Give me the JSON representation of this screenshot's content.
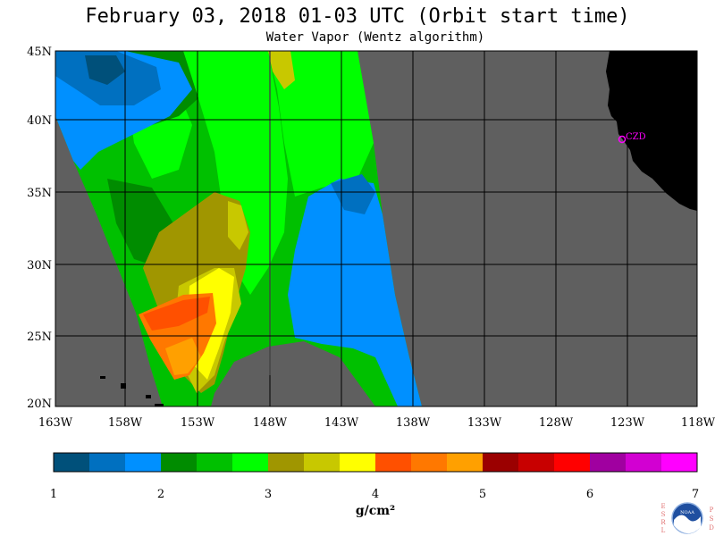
{
  "title": "February 03, 2018  01-03 UTC  (Orbit start time)",
  "subtitle": "Water Vapor (Wentz algorithm)",
  "map": {
    "lat_labels": [
      "45N",
      "40N",
      "35N",
      "30N",
      "25N",
      "20N"
    ],
    "lon_labels": [
      "163W",
      "158W",
      "153W",
      "148W",
      "143W",
      "138W",
      "133W",
      "128W",
      "123W",
      "118W"
    ],
    "station_label": "CZD",
    "colors": {
      "land": "#000000",
      "no_data": "#5f5f5f",
      "grid": "#000000",
      "station": "#ff00ff"
    }
  },
  "colorbar": {
    "unit_label": "g/cm²",
    "tick_labels": [
      "1",
      "2",
      "3",
      "4",
      "5",
      "6",
      "7"
    ],
    "colors": [
      "#00507a",
      "#0070c0",
      "#0090ff",
      "#008c00",
      "#00c000",
      "#00ff00",
      "#a09600",
      "#c8c800",
      "#ffff00",
      "#ff5000",
      "#ff7800",
      "#ffa000",
      "#9b0000",
      "#c80000",
      "#ff0000",
      "#a000a0",
      "#d200d2",
      "#ff00ff"
    ]
  },
  "logo": {
    "left_letters": [
      "E",
      "S",
      "R",
      "L"
    ],
    "right_letters": [
      "P",
      "S",
      "D"
    ],
    "center_text": "NOAA"
  }
}
